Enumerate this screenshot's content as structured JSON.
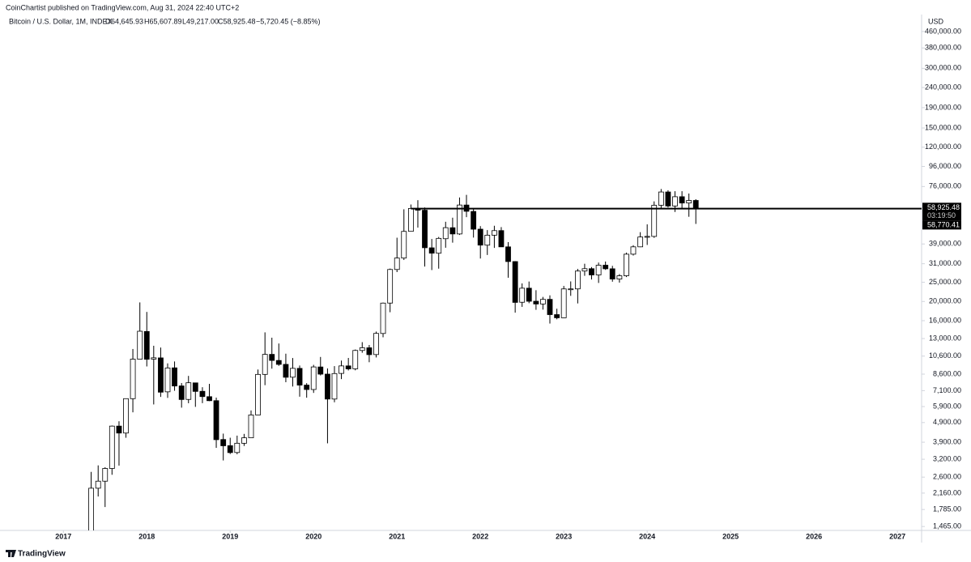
{
  "header": {
    "publisher": "CoinChartist published on TradingView.com, Aug 31, 2024 22:40 UTC+2",
    "symbol": "Bitcoin / U.S. Dollar, 1M, INDEX",
    "ohlc": [
      "O64,645.93",
      "H65,607.89",
      "L49,217.00",
      "C58,925.48"
    ],
    "change": "−5,720.45 (−8.85%)"
  },
  "footer": {
    "brand": "TradingView"
  },
  "chart_data": {
    "type": "candlestick",
    "log_scale": true,
    "grid": false,
    "currency": "USD",
    "up_color": "#ffffff",
    "down_color": "#000000",
    "outline_color": "#000000",
    "x": [
      2017.333,
      2017.417,
      2017.5,
      2017.583,
      2017.667,
      2017.75,
      2017.833,
      2017.917,
      2018,
      2018.083,
      2018.167,
      2018.25,
      2018.333,
      2018.417,
      2018.5,
      2018.583,
      2018.667,
      2018.75,
      2018.833,
      2018.917,
      2019,
      2019.083,
      2019.167,
      2019.25,
      2019.333,
      2019.417,
      2019.5,
      2019.583,
      2019.667,
      2019.75,
      2019.833,
      2019.917,
      2020,
      2020.083,
      2020.167,
      2020.25,
      2020.333,
      2020.417,
      2020.5,
      2020.583,
      2020.667,
      2020.75,
      2020.833,
      2020.917,
      2021,
      2021.083,
      2021.167,
      2021.25,
      2021.333,
      2021.417,
      2021.5,
      2021.583,
      2021.667,
      2021.75,
      2021.833,
      2021.917,
      2022,
      2022.083,
      2022.167,
      2022.25,
      2022.333,
      2022.417,
      2022.5,
      2022.583,
      2022.667,
      2022.75,
      2022.833,
      2022.917,
      2023,
      2023.083,
      2023.167,
      2023.25,
      2023.333,
      2023.417,
      2023.5,
      2023.583,
      2023.667,
      2023.75,
      2023.833,
      2023.917,
      2024,
      2024.083,
      2024.167,
      2024.25,
      2024.333,
      2024.417,
      2024.5,
      2024.583
    ],
    "open": [
      1348,
      2286,
      2480,
      2875,
      4703,
      4338,
      6468,
      10233,
      14112,
      10237,
      10385,
      7003,
      9251,
      7500,
      6411,
      7769,
      7044,
      6619,
      6318,
      4024,
      3746,
      3460,
      3853,
      4105,
      5350,
      8574,
      10818,
      10078,
      9630,
      8300,
      9194,
      7571,
      7194,
      9346,
      8600,
      6438,
      8672,
      9463,
      9145,
      11322,
      11679,
      10795,
      13791,
      19633,
      28994,
      33114,
      45159,
      58926,
      57714,
      37293,
      35035,
      41461,
      47099,
      43816,
      61309,
      56907,
      46311,
      38466,
      43194,
      45554,
      37714,
      31792,
      19820,
      23336,
      20050,
      19423,
      20495,
      17168,
      16547,
      23139,
      23147,
      28478,
      29268,
      27219,
      30477,
      29232,
      25940,
      26962,
      34639,
      37723,
      42283,
      42580,
      61131,
      71333,
      60636,
      67520,
      62754,
      64645.93
    ],
    "high": [
      2763,
      2980,
      2916,
      4736,
      4975,
      6470,
      11517,
      19783,
      17712,
      11958,
      11711,
      9745,
      9964,
      7754,
      8424,
      7769,
      7388,
      7680,
      6547,
      4310,
      4109,
      4210,
      4296,
      5642,
      9074,
      13970,
      13130,
      12274,
      10905,
      10370,
      9505,
      7743,
      9578,
      10500,
      9189,
      9441,
      10067,
      10381,
      11444,
      12468,
      12067,
      14100,
      19749,
      29300,
      41950,
      58352,
      61683,
      64854,
      59592,
      41330,
      42316,
      50482,
      52920,
      66930,
      69000,
      59041,
      47990,
      45821,
      48190,
      47444,
      39845,
      31957,
      24668,
      25211,
      22799,
      21085,
      21473,
      18387,
      23955,
      25250,
      29200,
      31000,
      29820,
      31431,
      31804,
      30244,
      27483,
      35280,
      38450,
      44729,
      48969,
      63968,
      73835,
      72797,
      71980,
      71997,
      70079,
      65607.89
    ],
    "low": [
      1348,
      2076,
      1837,
      2672,
      2972,
      4108,
      5519,
      10233,
      9402,
      6048,
      6600,
      6526,
      7089,
      5826,
      6133,
      5880,
      6140,
      6286,
      3652,
      3156,
      3400,
      3391,
      3734,
      4096,
      5350,
      7564,
      9164,
      9467,
      7830,
      7446,
      6617,
      6540,
      6915,
      8471,
      3850,
      6202,
      8117,
      8975,
      8988,
      11021,
      9875,
      10437,
      13195,
      17650,
      28130,
      32384,
      45000,
      47159,
      30000,
      28805,
      29278,
      37332,
      39600,
      43320,
      53256,
      42000,
      32933,
      34323,
      37260,
      37697,
      26350,
      17567,
      18782,
      19600,
      18153,
      18190,
      15476,
      16256,
      16499,
      21351,
      19549,
      26942,
      25811,
      24800,
      28861,
      25166,
      24901,
      26560,
      34100,
      37600,
      38555,
      41884,
      59005,
      59600,
      56552,
      58402,
      53485,
      49217
    ],
    "close": [
      2286,
      2480,
      2875,
      4703,
      4338,
      6468,
      10233,
      14156,
      10221,
      10397,
      6973,
      9240,
      7494,
      6404,
      7780,
      7037,
      6625,
      6317,
      4017,
      3742,
      3457,
      3854,
      4105,
      5350,
      8574,
      10817,
      10085,
      9630,
      8293,
      9199,
      7569,
      7193,
      9350,
      8599,
      6438,
      8658,
      9461,
      9137,
      11323,
      11680,
      10784,
      13804,
      19625,
      29001,
      33114,
      45137,
      58918,
      57750,
      37332,
      35041,
      41626,
      47130,
      43824,
      61318,
      57005,
      46306,
      38483,
      43193,
      45538,
      37714,
      31792,
      19785,
      23336,
      20050,
      19423,
      20495,
      17168,
      16547,
      23139,
      23147,
      28478,
      29268,
      27219,
      30477,
      29232,
      25940,
      26962,
      34639,
      37723,
      42283,
      42580,
      61131,
      71333,
      60636,
      67520,
      62754,
      64646,
      58925.48
    ],
    "xlim": [
      2016.24,
      2027.29
    ],
    "xticks": [
      2017,
      2018,
      2019,
      2020,
      2021,
      2022,
      2023,
      2024,
      2025,
      2026,
      2027
    ],
    "ylim": [
      1400,
      560000
    ],
    "yticks": [
      {
        "value": 460000,
        "label": "460,000.00"
      },
      {
        "value": 380000,
        "label": "380,000.00"
      },
      {
        "value": 300000,
        "label": "300,000.00"
      },
      {
        "value": 240000,
        "label": "240,000.00"
      },
      {
        "value": 190000,
        "label": "190,000.00"
      },
      {
        "value": 150000,
        "label": "150,000.00"
      },
      {
        "value": 120000,
        "label": "120,000.00"
      },
      {
        "value": 96000,
        "label": "96,000.00"
      },
      {
        "value": 76000,
        "label": "76,000.00"
      },
      {
        "value": 39000,
        "label": "39,000.00"
      },
      {
        "value": 31000,
        "label": "31,000.00"
      },
      {
        "value": 25000,
        "label": "25,000.00"
      },
      {
        "value": 20000,
        "label": "20,000.00"
      },
      {
        "value": 16000,
        "label": "16,000.00"
      },
      {
        "value": 13000,
        "label": "13,000.00"
      },
      {
        "value": 10600,
        "label": "10,600.00"
      },
      {
        "value": 8600,
        "label": "8,600.00"
      },
      {
        "value": 7100,
        "label": "7,100.00"
      },
      {
        "value": 5900,
        "label": "5,900.00"
      },
      {
        "value": 4900,
        "label": "4,900.00"
      },
      {
        "value": 3900,
        "label": "3,900.00"
      },
      {
        "value": 3200,
        "label": "3,200.00"
      },
      {
        "value": 2600,
        "label": "2,600.00"
      },
      {
        "value": 2160,
        "label": "2,160.00"
      },
      {
        "value": 1785,
        "label": "1,785.00"
      },
      {
        "value": 1465,
        "label": "1,465.00"
      }
    ],
    "hline": {
      "value": 58770.41,
      "label": "58,770.41",
      "x_start": 2021.167,
      "color": "#000000"
    },
    "last_price": {
      "value": 58925.48,
      "label": "58,925.48",
      "countdown": "03:19:50",
      "color": "#000000"
    }
  }
}
